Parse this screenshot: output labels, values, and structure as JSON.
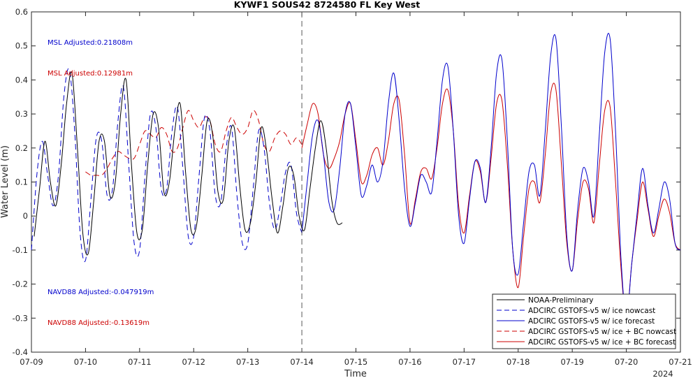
{
  "chart_data": {
    "type": "line",
    "title": "KYWF1 SOUS42 8724580 FL Key West",
    "xlabel": "Time",
    "ylabel": "Water Level (m)",
    "xlim": [
      0,
      12
    ],
    "ylim": [
      -0.4,
      0.6
    ],
    "x_ticks": [
      "07-09",
      "07-10",
      "07-11",
      "07-12",
      "07-13",
      "07-14",
      "07-15",
      "07-16",
      "07-17",
      "07-18",
      "07-19",
      "07-20",
      "07-21"
    ],
    "x_secondary_label": "2024",
    "y_ticks": [
      -0.4,
      -0.3,
      -0.2,
      -0.1,
      0,
      0.1,
      0.2,
      0.3,
      0.4,
      0.5,
      0.6
    ],
    "nowcast_forecast_divider_x": 5,
    "grid": false,
    "legend_position": "bottom-right",
    "annotations": [
      {
        "text": "MSL Adjusted:0.21808m",
        "color": "#0000cc"
      },
      {
        "text": "MSL Adjusted:0.12981m",
        "color": "#cc0000"
      },
      {
        "text": "NAVD88 Adjusted:-0.047919m",
        "color": "#0000cc"
      },
      {
        "text": "NAVD88 Adjusted:-0.13619m",
        "color": "#cc0000"
      }
    ],
    "series": [
      {
        "name": "NOAA-Preliminary",
        "color": "#000000",
        "dash": false,
        "x": [
          0.05,
          0.15,
          0.25,
          0.35,
          0.45,
          0.55,
          0.65,
          0.75,
          0.85,
          0.95,
          1.05,
          1.15,
          1.25,
          1.35,
          1.45,
          1.55,
          1.65,
          1.75,
          1.85,
          1.95,
          2.05,
          2.15,
          2.25,
          2.35,
          2.45,
          2.55,
          2.65,
          2.75,
          2.85,
          2.95,
          3.05,
          3.15,
          3.25,
          3.35,
          3.45,
          3.55,
          3.65,
          3.75,
          3.85,
          3.95,
          4.05,
          4.15,
          4.25,
          4.35,
          4.45,
          4.55,
          4.65,
          4.75,
          4.85,
          4.95,
          5.05,
          5.15,
          5.25,
          5.35,
          5.45,
          5.55,
          5.65,
          5.75
        ],
        "y": [
          -0.06,
          0.08,
          0.22,
          0.1,
          0.03,
          0.15,
          0.33,
          0.42,
          0.2,
          -0.05,
          -0.11,
          0.04,
          0.22,
          0.22,
          0.06,
          0.1,
          0.3,
          0.4,
          0.15,
          -0.05,
          -0.04,
          0.15,
          0.3,
          0.26,
          0.07,
          0.1,
          0.25,
          0.33,
          0.13,
          -0.04,
          -0.03,
          0.12,
          0.28,
          0.24,
          0.07,
          0.05,
          0.22,
          0.26,
          0.09,
          -0.04,
          -0.02,
          0.1,
          0.26,
          0.19,
          0.05,
          -0.05,
          0.03,
          0.14,
          0.12,
          0.0,
          -0.04,
          0.08,
          0.2,
          0.28,
          0.2,
          0.05,
          -0.02,
          -0.02
        ]
      },
      {
        "name": "ADCIRC GSTOFS-v5 w/ ice nowcast",
        "color": "#0000cc",
        "dash": true,
        "x": [
          0.0,
          0.1,
          0.2,
          0.3,
          0.4,
          0.5,
          0.6,
          0.7,
          0.8,
          0.9,
          1.0,
          1.1,
          1.2,
          1.3,
          1.4,
          1.5,
          1.6,
          1.7,
          1.8,
          1.9,
          2.0,
          2.1,
          2.2,
          2.3,
          2.4,
          2.5,
          2.6,
          2.7,
          2.8,
          2.9,
          3.0,
          3.1,
          3.2,
          3.3,
          3.4,
          3.5,
          3.6,
          3.7,
          3.8,
          3.9,
          4.0,
          4.1,
          4.2,
          4.3,
          4.4,
          4.5,
          4.6,
          4.7,
          4.8,
          4.9,
          5.0
        ],
        "y": [
          -0.1,
          0.12,
          0.22,
          0.12,
          0.03,
          0.12,
          0.35,
          0.43,
          0.25,
          -0.05,
          -0.13,
          0.05,
          0.23,
          0.22,
          0.06,
          0.08,
          0.28,
          0.38,
          0.15,
          -0.08,
          -0.1,
          0.12,
          0.3,
          0.26,
          0.08,
          0.08,
          0.25,
          0.32,
          0.14,
          -0.06,
          -0.06,
          0.12,
          0.29,
          0.25,
          0.06,
          0.04,
          0.2,
          0.26,
          0.06,
          -0.08,
          -0.08,
          0.08,
          0.25,
          0.2,
          0.04,
          -0.04,
          0.03,
          0.13,
          0.15,
          0.01,
          -0.05
        ]
      },
      {
        "name": "ADCIRC GSTOFS-v5 w/ ice forecast",
        "color": "#0000cc",
        "dash": false,
        "x": [
          5.0,
          5.1,
          5.2,
          5.3,
          5.4,
          5.5,
          5.6,
          5.7,
          5.8,
          5.9,
          6.0,
          6.1,
          6.2,
          6.3,
          6.4,
          6.5,
          6.6,
          6.7,
          6.8,
          6.9,
          7.0,
          7.1,
          7.2,
          7.3,
          7.4,
          7.5,
          7.6,
          7.7,
          7.8,
          7.9,
          8.0,
          8.1,
          8.2,
          8.3,
          8.4,
          8.5,
          8.6,
          8.7,
          8.8,
          8.9,
          9.0,
          9.1,
          9.2,
          9.3,
          9.4,
          9.5,
          9.6,
          9.7,
          9.8,
          9.9,
          10.0,
          10.1,
          10.2,
          10.3,
          10.4,
          10.5,
          10.6,
          10.7,
          10.8,
          10.9,
          11.0,
          11.1,
          11.2,
          11.3,
          11.4,
          11.5,
          11.6,
          11.7,
          11.8,
          11.9,
          12.0
        ],
        "y": [
          -0.05,
          0.1,
          0.24,
          0.28,
          0.18,
          0.04,
          0.02,
          0.14,
          0.3,
          0.33,
          0.2,
          0.06,
          0.09,
          0.15,
          0.1,
          0.16,
          0.33,
          0.42,
          0.28,
          0.08,
          -0.03,
          0.04,
          0.12,
          0.1,
          0.07,
          0.22,
          0.4,
          0.44,
          0.25,
          0.0,
          -0.08,
          0.05,
          0.16,
          0.14,
          0.04,
          0.2,
          0.42,
          0.46,
          0.22,
          -0.1,
          -0.17,
          -0.02,
          0.13,
          0.15,
          0.06,
          0.25,
          0.47,
          0.52,
          0.26,
          -0.06,
          -0.16,
          0.02,
          0.14,
          0.1,
          0.0,
          0.24,
          0.48,
          0.52,
          0.25,
          -0.12,
          -0.3,
          -0.14,
          0.01,
          0.14,
          0.03,
          -0.05,
          0.02,
          0.1,
          0.05,
          -0.08,
          -0.1
        ]
      },
      {
        "name": "ADCIRC GSTOFS-v5 w/ ice + BC nowcast",
        "color": "#cc0000",
        "dash": true,
        "x": [
          1.0,
          1.1,
          1.2,
          1.3,
          1.4,
          1.5,
          1.6,
          1.7,
          1.8,
          1.9,
          2.0,
          2.1,
          2.2,
          2.3,
          2.4,
          2.5,
          2.6,
          2.7,
          2.8,
          2.9,
          3.0,
          3.1,
          3.2,
          3.3,
          3.4,
          3.5,
          3.6,
          3.7,
          3.8,
          3.9,
          4.0,
          4.1,
          4.2,
          4.3,
          4.4,
          4.5,
          4.6,
          4.7,
          4.8,
          4.9,
          5.0
        ],
        "y": [
          0.13,
          0.12,
          0.12,
          0.12,
          0.14,
          0.17,
          0.19,
          0.18,
          0.17,
          0.17,
          0.21,
          0.25,
          0.24,
          0.23,
          0.26,
          0.24,
          0.19,
          0.2,
          0.26,
          0.31,
          0.28,
          0.26,
          0.29,
          0.28,
          0.21,
          0.19,
          0.25,
          0.29,
          0.26,
          0.24,
          0.26,
          0.31,
          0.28,
          0.21,
          0.19,
          0.23,
          0.25,
          0.24,
          0.21,
          0.23,
          0.21
        ]
      },
      {
        "name": "ADCIRC GSTOFS-v5 w/ ice + BC forecast",
        "color": "#cc0000",
        "dash": false,
        "x": [
          5.0,
          5.1,
          5.2,
          5.3,
          5.4,
          5.5,
          5.6,
          5.7,
          5.8,
          5.9,
          6.0,
          6.1,
          6.2,
          6.3,
          6.4,
          6.5,
          6.6,
          6.7,
          6.8,
          6.9,
          7.0,
          7.1,
          7.2,
          7.3,
          7.4,
          7.5,
          7.6,
          7.7,
          7.8,
          7.9,
          8.0,
          8.1,
          8.2,
          8.3,
          8.4,
          8.5,
          8.6,
          8.7,
          8.8,
          8.9,
          9.0,
          9.1,
          9.2,
          9.3,
          9.4,
          9.5,
          9.6,
          9.7,
          9.8,
          9.9,
          10.0,
          10.1,
          10.2,
          10.3,
          10.4,
          10.5,
          10.6,
          10.7,
          10.8,
          10.9,
          11.0,
          11.1,
          11.2,
          11.3,
          11.4,
          11.5,
          11.6,
          11.7,
          11.8,
          11.9,
          12.0
        ],
        "y": [
          0.2,
          0.27,
          0.33,
          0.3,
          0.18,
          0.14,
          0.17,
          0.22,
          0.3,
          0.33,
          0.22,
          0.1,
          0.12,
          0.18,
          0.2,
          0.15,
          0.22,
          0.33,
          0.34,
          0.18,
          -0.02,
          0.05,
          0.13,
          0.14,
          0.11,
          0.2,
          0.33,
          0.37,
          0.25,
          0.03,
          -0.05,
          0.06,
          0.16,
          0.13,
          0.04,
          0.17,
          0.33,
          0.34,
          0.15,
          -0.1,
          -0.21,
          -0.06,
          0.08,
          0.1,
          0.04,
          0.18,
          0.36,
          0.37,
          0.15,
          -0.08,
          -0.16,
          -0.01,
          0.1,
          0.08,
          -0.02,
          0.15,
          0.31,
          0.32,
          0.1,
          -0.15,
          -0.3,
          -0.14,
          -0.01,
          0.1,
          0.02,
          -0.06,
          0.0,
          0.05,
          0.01,
          -0.08,
          -0.1
        ]
      }
    ]
  }
}
